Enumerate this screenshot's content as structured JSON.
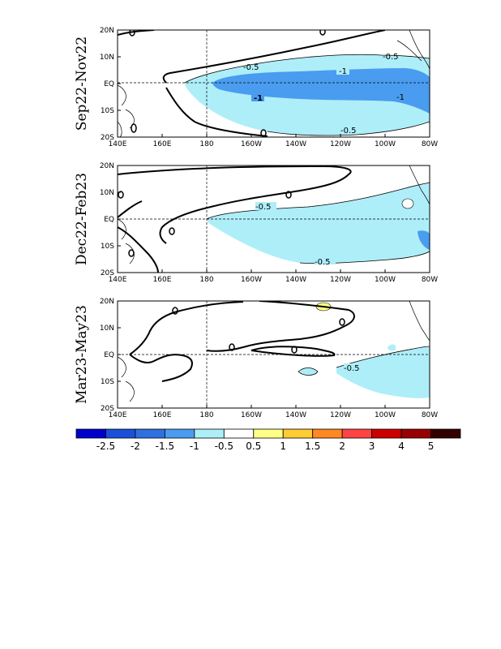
{
  "panels": [
    {
      "period": "Sep22-Nov22",
      "contour_labels": [
        "-0.5",
        "-0.5",
        "-1",
        "-1",
        "-1",
        "-0.5"
      ]
    },
    {
      "period": "Dec22-Feb23",
      "contour_labels": [
        "-0.5",
        "-0.5"
      ]
    },
    {
      "period": "Mar23-May23",
      "contour_labels": [
        "-0.5"
      ]
    }
  ],
  "axes": {
    "lat_ticks": [
      "20N",
      "10N",
      "EQ",
      "10S",
      "20S"
    ],
    "lon_ticks": [
      "140E",
      "160E",
      "180",
      "160W",
      "140W",
      "120W",
      "100W",
      "80W"
    ]
  },
  "colorbar": {
    "colors": [
      "#0000cc",
      "#1a50d9",
      "#2f6fe0",
      "#4a9cf0",
      "#aeeef8",
      "#ffffff",
      "#ffffff",
      "#ffff88",
      "#ffcc33",
      "#ff8822",
      "#ff4444",
      "#cc0000",
      "#990000",
      "#660000",
      "#330000"
    ],
    "labels": [
      "-2.5",
      "-2",
      "-1.5",
      "-1",
      "-0.5",
      "0.5",
      "1",
      "1.5",
      "2",
      "3",
      "4",
      "5"
    ]
  },
  "fill_colors": {
    "light_blue": "#aeeef8",
    "mid_blue": "#4a9cf0",
    "yellow": "#ffff88"
  }
}
